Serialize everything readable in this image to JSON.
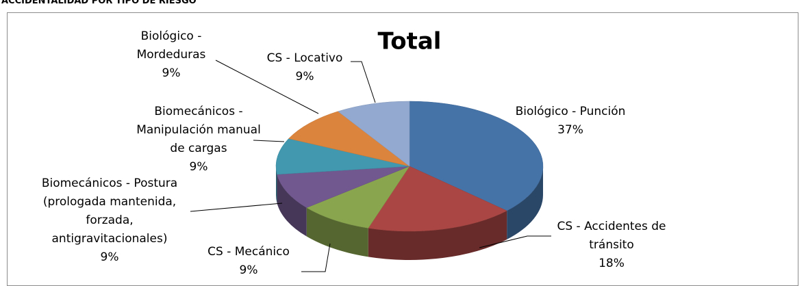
{
  "heading": "ACCIDENTALIDAD POR TIPO DE RIESGO",
  "chart_data": {
    "type": "pie",
    "title": "Total",
    "categories": [
      "Biológico - Punción",
      "CS - Accidentes de tránsito",
      "CS - Mecánico",
      "Biomecánicos - Postura  (prologada mantenida, forzada, antigravitacionales)",
      "Biomecánicos - Manipulación manual de cargas",
      "Biológico - Mordeduras",
      "CS - Locativo"
    ],
    "values": [
      37,
      18,
      9,
      9,
      9,
      9,
      9
    ],
    "value_labels": [
      "37%",
      "18%",
      "9%",
      "9%",
      "9%",
      "9%",
      "9%"
    ],
    "colors": [
      "#4572a7",
      "#aa4643",
      "#89a54e",
      "#71588f",
      "#4198af",
      "#db843d",
      "#93a9cf"
    ]
  }
}
